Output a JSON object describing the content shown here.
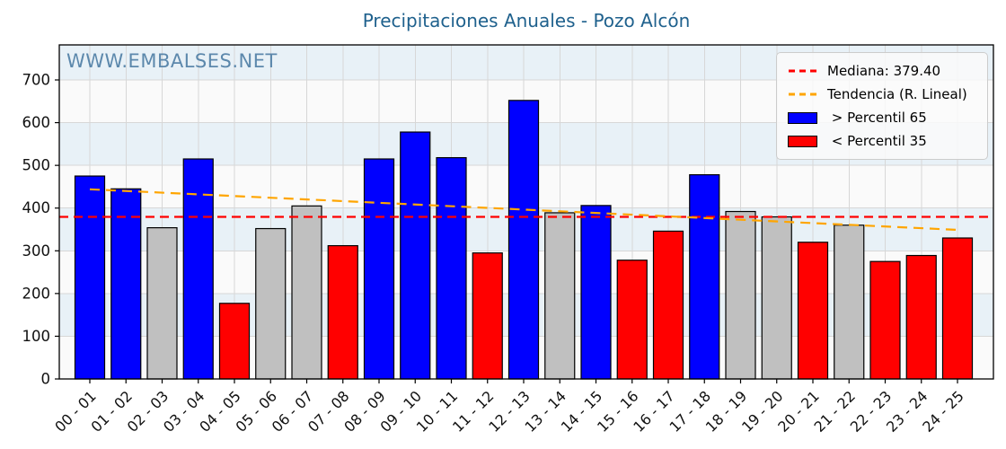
{
  "watermark": "WWW.EMBALSES.NET",
  "colors": {
    "title": "#1f618d",
    "watermark": "#4d7da4",
    "bar_above_p65": "#0000ff",
    "bar_below_p35": "#ff0000",
    "bar_mid": "#c0c0c0",
    "bar_edge": "#000000",
    "median_line": "#ff0000",
    "trend_line": "#ffa500",
    "band_light": "#e8f1f7",
    "band_white": "#fafafa",
    "grid": "#d7d7d7",
    "axis": "#000000",
    "tick_text": "#111111",
    "legend_border": "#cccccc"
  },
  "chart_data": {
    "type": "bar",
    "title": "Precipitaciones Anuales - Pozo Alcón",
    "xlabel": "",
    "ylabel": "",
    "grid": true,
    "legend_position": "upper right",
    "ylim": [
      0,
      782
    ],
    "yticks": [
      0,
      100,
      200,
      300,
      400,
      500,
      600,
      700
    ],
    "categories": [
      "00 - 01",
      "01 - 02",
      "02 - 03",
      "03 - 04",
      "04 - 05",
      "05 - 06",
      "06 - 07",
      "07 - 08",
      "08 - 09",
      "09 - 10",
      "10 - 11",
      "11 - 12",
      "12 - 13",
      "13 - 14",
      "14 - 15",
      "15 - 16",
      "16 - 17",
      "17 - 18",
      "18 - 19",
      "19 - 20",
      "20 - 21",
      "21 - 22",
      "22 - 23",
      "23 - 24",
      "24 - 25"
    ],
    "values": [
      475,
      445,
      354,
      515,
      177,
      352,
      405,
      312,
      515,
      578,
      518,
      295,
      652,
      389,
      406,
      278,
      346,
      478,
      392,
      379.4,
      320,
      360,
      275,
      289,
      330
    ],
    "classes": [
      "p65",
      "p65",
      "mid",
      "p65",
      "p35",
      "mid",
      "mid",
      "p35",
      "p65",
      "p65",
      "p65",
      "p35",
      "p65",
      "mid",
      "p65",
      "p35",
      "p35",
      "p65",
      "mid",
      "mid",
      "p35",
      "mid",
      "p35",
      "p35",
      "p35"
    ],
    "median": 379.4,
    "trend_linear": {
      "start_value": 444,
      "end_value": 349
    },
    "legend": [
      {
        "label": "Mediana: 379.40",
        "type": "dashed-line",
        "color_key": "median_line"
      },
      {
        "label": "Tendencia (R. Lineal)",
        "type": "dashed-line",
        "color_key": "trend_line"
      },
      {
        "label": " > Percentil 65",
        "type": "patch",
        "color_key": "bar_above_p65"
      },
      {
        "label": " < Percentil 35",
        "type": "patch",
        "color_key": "bar_below_p35"
      }
    ]
  }
}
